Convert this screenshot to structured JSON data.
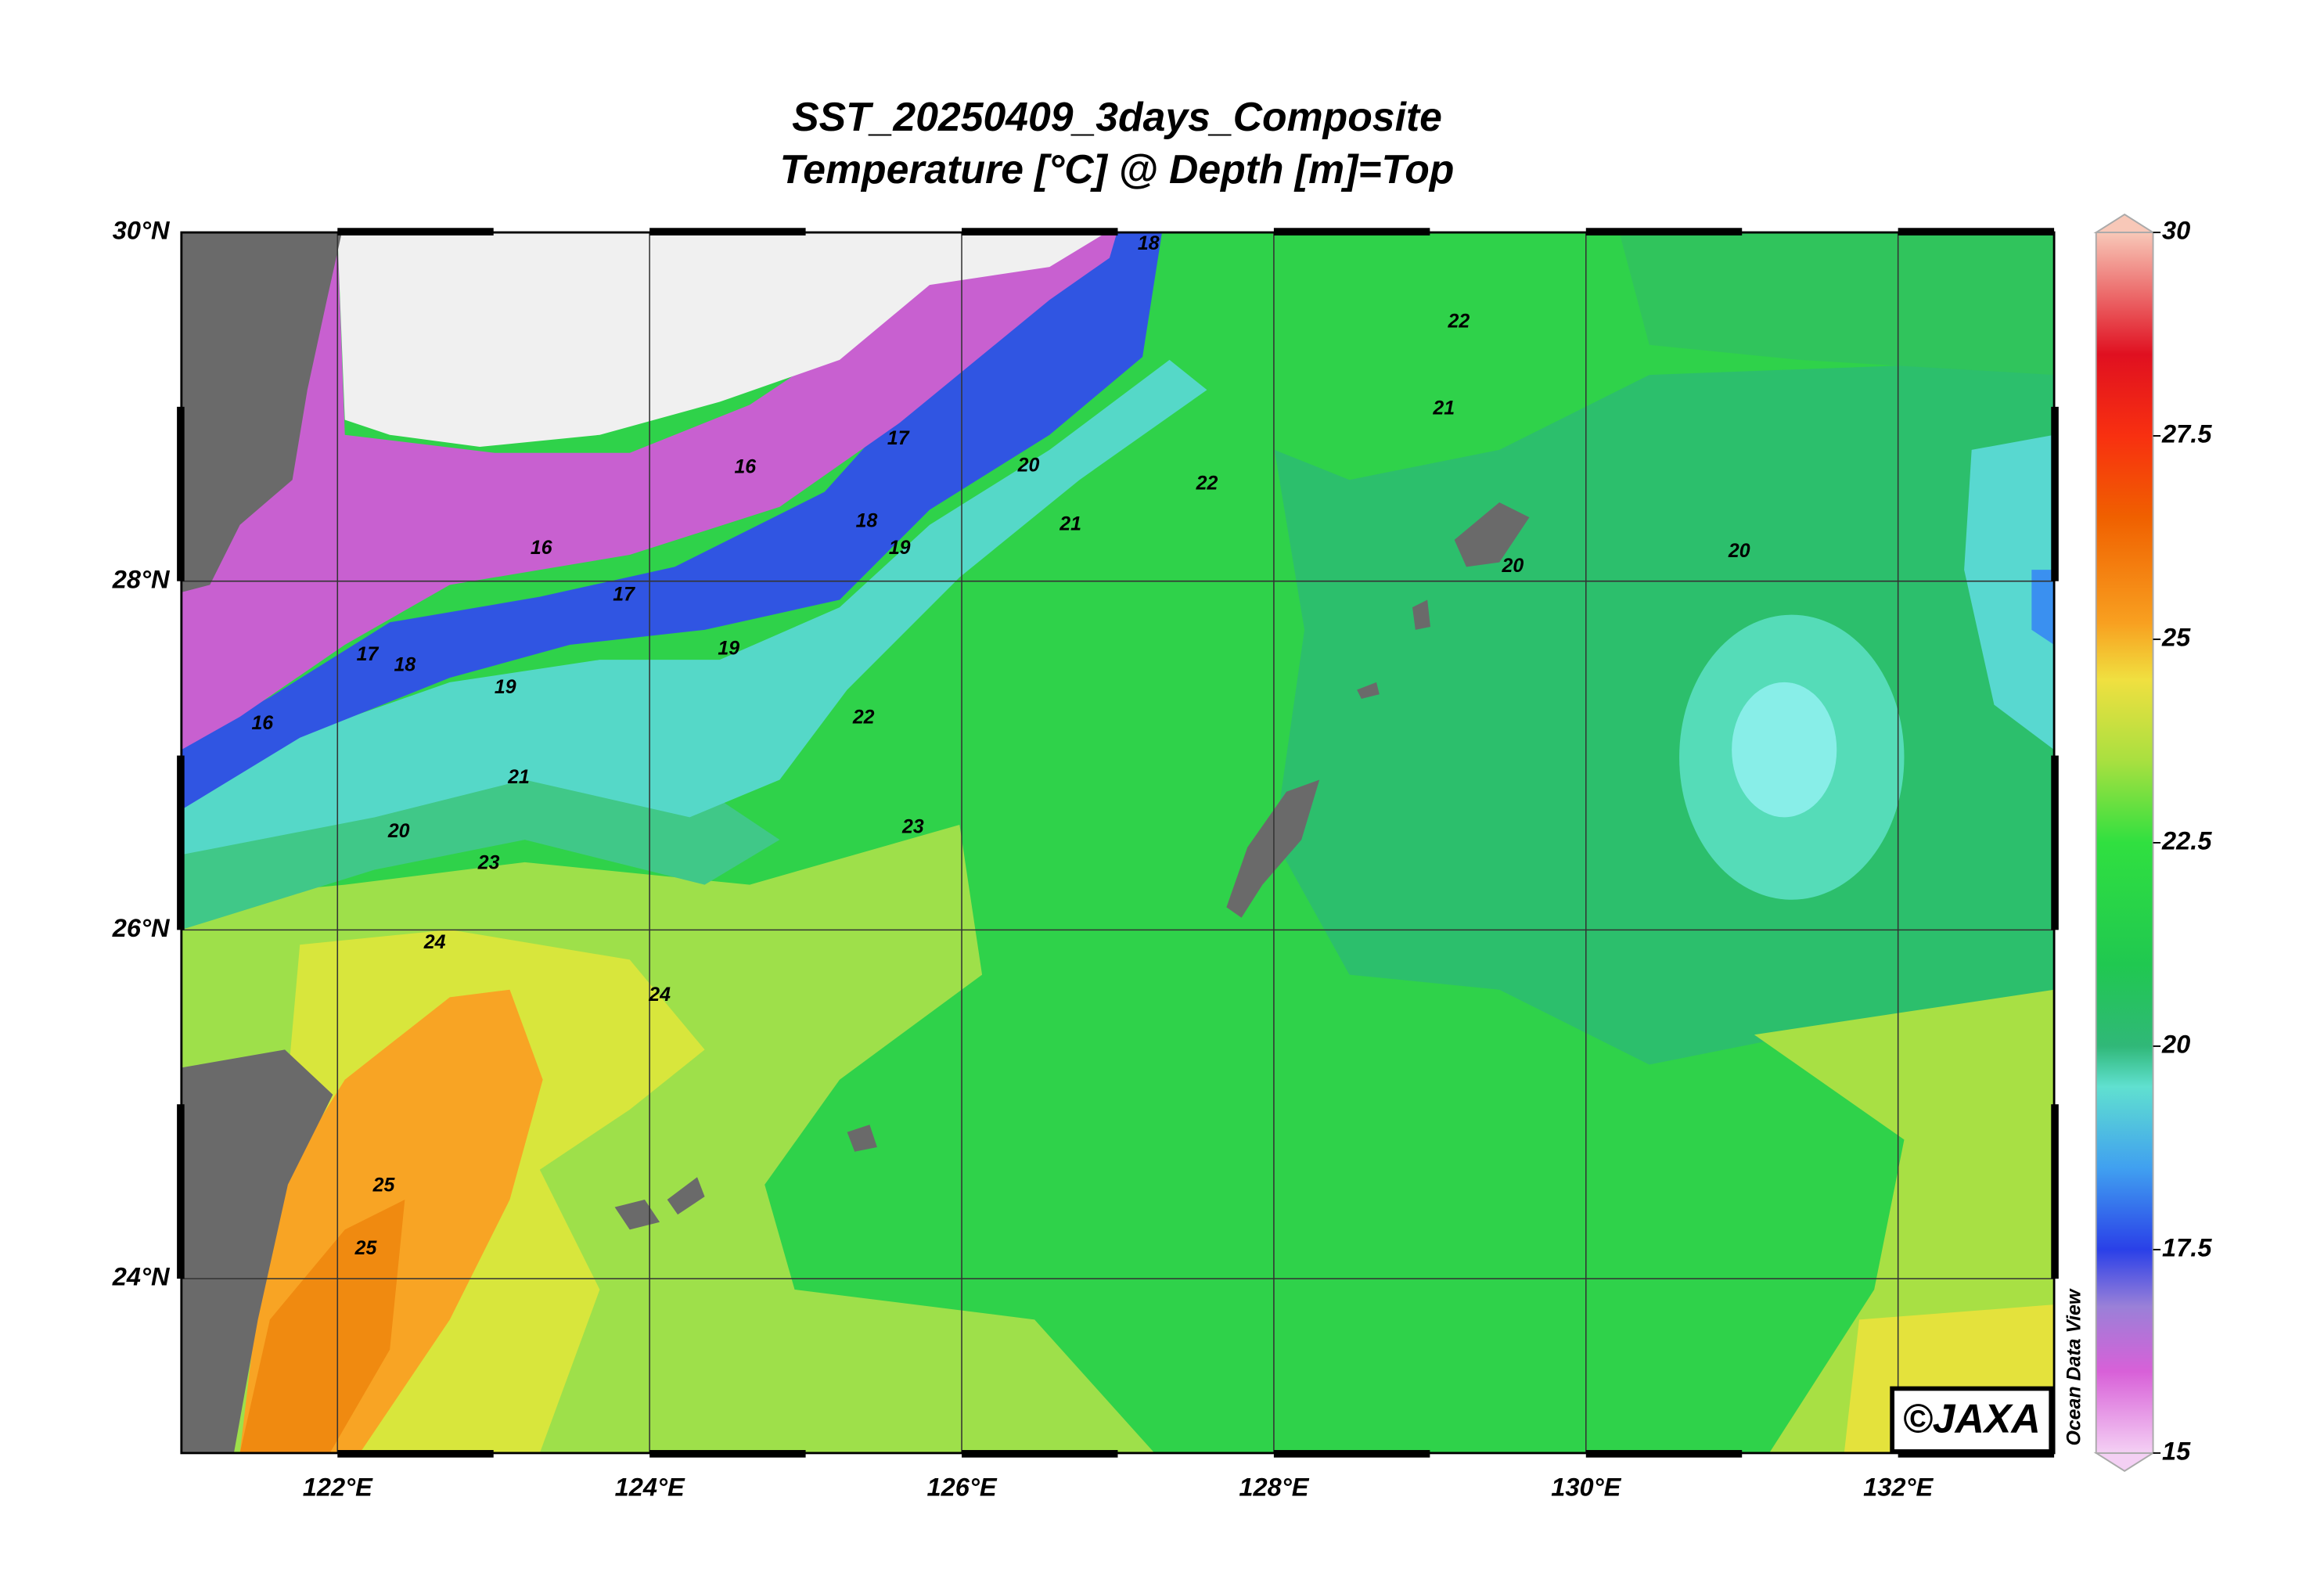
{
  "title": "SST_20250409_3days_Composite",
  "subtitle": "Temperature [°C] @ Depth [m]=Top",
  "map": {
    "xlim": [
      121,
      133
    ],
    "ylim": [
      23,
      30
    ],
    "xticks": [
      {
        "value": 122,
        "label": "122°E"
      },
      {
        "value": 124,
        "label": "124°E"
      },
      {
        "value": 126,
        "label": "126°E"
      },
      {
        "value": 128,
        "label": "128°E"
      },
      {
        "value": 130,
        "label": "130°E"
      },
      {
        "value": 132,
        "label": "132°E"
      }
    ],
    "yticks": [
      {
        "value": 24,
        "label": "24°N"
      },
      {
        "value": 26,
        "label": "26°N"
      },
      {
        "value": 28,
        "label": "28°N"
      },
      {
        "value": 30,
        "label": "30°N"
      }
    ],
    "contour_labels": [
      16,
      16,
      16,
      17,
      17,
      17,
      18,
      18,
      18,
      19,
      19,
      19,
      20,
      20,
      20,
      20,
      21,
      21,
      21,
      22,
      22,
      22,
      23,
      23,
      24,
      24,
      25,
      25
    ]
  },
  "colorbar": {
    "range": [
      15,
      30
    ],
    "ticks": [
      15,
      17.5,
      20,
      22.5,
      25,
      27.5,
      30
    ],
    "stops": [
      [
        15,
        "#f4d0f4"
      ],
      [
        16,
        "#d860d8"
      ],
      [
        16.8,
        "#9a80d8"
      ],
      [
        17.5,
        "#2a40e8"
      ],
      [
        18.5,
        "#40a0f0"
      ],
      [
        19.5,
        "#60e0d0"
      ],
      [
        20,
        "#30b878"
      ],
      [
        21,
        "#20c850"
      ],
      [
        22.5,
        "#30e040"
      ],
      [
        23.5,
        "#a8e040"
      ],
      [
        24.5,
        "#f0e040"
      ],
      [
        25.2,
        "#f8a020"
      ],
      [
        26.5,
        "#f06000"
      ],
      [
        27.5,
        "#f83010"
      ],
      [
        28.5,
        "#e01020"
      ],
      [
        30,
        "#f8c8b8"
      ]
    ]
  },
  "watermark": "Ocean Data View",
  "credit": "©JAXA"
}
